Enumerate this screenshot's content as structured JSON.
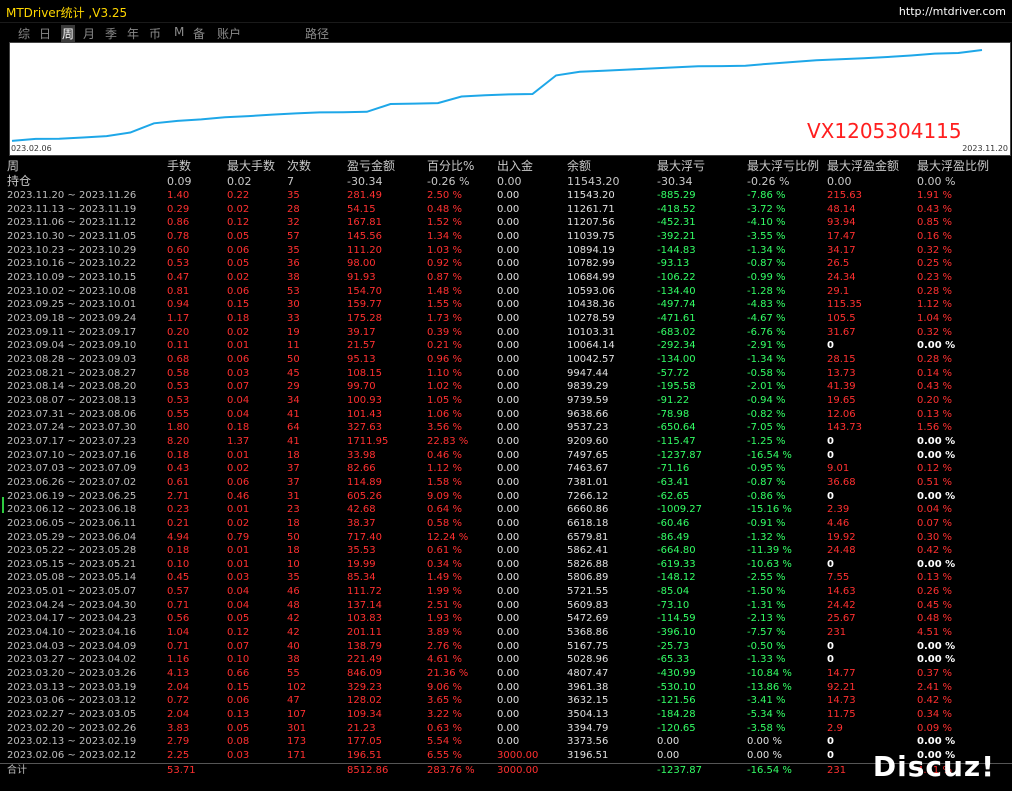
{
  "window": {
    "title": "MTDriver统计 ,V3.25",
    "url": "http://mtdriver.com"
  },
  "tabs": [
    "综",
    "日",
    "周",
    "月",
    "季",
    "年",
    "币",
    "M",
    "备",
    "账户",
    "路径"
  ],
  "active_tab": "周",
  "chart": {
    "start_label": "023.02.06",
    "end_label": "2023.11.20",
    "watermark": "VX1205304115",
    "line_color": "#1ea7e8"
  },
  "chart_data": {
    "type": "line",
    "series": [
      {
        "values": [
          3196.51,
          3373.56,
          3394.79,
          3504.13,
          3632.15,
          3961.38,
          4807.47,
          5028.96,
          5167.75,
          5368.86,
          5472.69,
          5609.83,
          5721.55,
          5806.89,
          5826.88,
          5862.41,
          6579.81,
          6618.18,
          6660.86,
          7266.12,
          7381.01,
          7463.67,
          7497.65,
          9209.6,
          9537.23,
          9638.66,
          9739.59,
          9839.29,
          9947.44,
          10042.57,
          10064.14,
          10103.31,
          10278.59,
          10438.36,
          10593.06,
          10684.99,
          10782.99,
          10894.19,
          11039.75,
          11207.56,
          11261.71,
          11543.2
        ]
      }
    ],
    "x_start": "023.02.06",
    "x_end": "2023.11.20"
  },
  "headers": [
    "周",
    "手数",
    "最大手数",
    "次数",
    "盈亏金额",
    "百分比%",
    "出入金",
    "余额",
    "最大浮亏",
    "最大浮亏比例",
    "最大浮盈金额",
    "最大浮盈比例"
  ],
  "holding": {
    "label": "持仓",
    "lots": "0.09",
    "maxlots": "0.02",
    "count": "7",
    "pnl": "-30.34",
    "pct": "-0.26 %",
    "io": "0.00",
    "balance": "11543.20",
    "maxloss": "-30.34",
    "maxlosspct": "-0.26 %",
    "maxprofit": "0.00",
    "maxprofitpct": "0.00 %"
  },
  "rows": [
    [
      "2023.11.20 ~ 2023.11.26",
      "1.40",
      "0.22",
      "35",
      "281.49",
      "2.50 %",
      "0.00",
      "11543.20",
      "-885.29",
      "-7.86 %",
      "215.63",
      "1.91 %"
    ],
    [
      "2023.11.13 ~ 2023.11.19",
      "0.29",
      "0.02",
      "28",
      "54.15",
      "0.48 %",
      "0.00",
      "11261.71",
      "-418.52",
      "-3.72 %",
      "48.14",
      "0.43 %"
    ],
    [
      "2023.11.06 ~ 2023.11.12",
      "0.86",
      "0.12",
      "32",
      "167.81",
      "1.52 %",
      "0.00",
      "11207.56",
      "-452.31",
      "-4.10 %",
      "93.94",
      "0.85 %"
    ],
    [
      "2023.10.30 ~ 2023.11.05",
      "0.78",
      "0.05",
      "57",
      "145.56",
      "1.34 %",
      "0.00",
      "11039.75",
      "-392.21",
      "-3.55 %",
      "17.47",
      "0.16 %"
    ],
    [
      "2023.10.23 ~ 2023.10.29",
      "0.60",
      "0.06",
      "35",
      "111.20",
      "1.03 %",
      "0.00",
      "10894.19",
      "-144.83",
      "-1.34 %",
      "34.17",
      "0.32 %"
    ],
    [
      "2023.10.16 ~ 2023.10.22",
      "0.53",
      "0.05",
      "36",
      "98.00",
      "0.92 %",
      "0.00",
      "10782.99",
      "-93.13",
      "-0.87 %",
      "26.5",
      "0.25 %"
    ],
    [
      "2023.10.09 ~ 2023.10.15",
      "0.47",
      "0.02",
      "38",
      "91.93",
      "0.87 %",
      "0.00",
      "10684.99",
      "-106.22",
      "-0.99 %",
      "24.34",
      "0.23 %"
    ],
    [
      "2023.10.02 ~ 2023.10.08",
      "0.81",
      "0.06",
      "53",
      "154.70",
      "1.48 %",
      "0.00",
      "10593.06",
      "-134.40",
      "-1.28 %",
      "29.1",
      "0.28 %"
    ],
    [
      "2023.09.25 ~ 2023.10.01",
      "0.94",
      "0.15",
      "30",
      "159.77",
      "1.55 %",
      "0.00",
      "10438.36",
      "-497.74",
      "-4.83 %",
      "115.35",
      "1.12 %"
    ],
    [
      "2023.09.18 ~ 2023.09.24",
      "1.17",
      "0.18",
      "33",
      "175.28",
      "1.73 %",
      "0.00",
      "10278.59",
      "-471.61",
      "-4.67 %",
      "105.5",
      "1.04 %"
    ],
    [
      "2023.09.11 ~ 2023.09.17",
      "0.20",
      "0.02",
      "19",
      "39.17",
      "0.39 %",
      "0.00",
      "10103.31",
      "-683.02",
      "-6.76 %",
      "31.67",
      "0.32 %"
    ],
    [
      "2023.09.04 ~ 2023.09.10",
      "0.11",
      "0.01",
      "11",
      "21.57",
      "0.21 %",
      "0.00",
      "10064.14",
      "-292.34",
      "-2.91 %",
      "0",
      "0.00 %"
    ],
    [
      "2023.08.28 ~ 2023.09.03",
      "0.68",
      "0.06",
      "50",
      "95.13",
      "0.96 %",
      "0.00",
      "10042.57",
      "-134.00",
      "-1.34 %",
      "28.15",
      "0.28 %"
    ],
    [
      "2023.08.21 ~ 2023.08.27",
      "0.58",
      "0.03",
      "45",
      "108.15",
      "1.10 %",
      "0.00",
      "9947.44",
      "-57.72",
      "-0.58 %",
      "13.73",
      "0.14 %"
    ],
    [
      "2023.08.14 ~ 2023.08.20",
      "0.53",
      "0.07",
      "29",
      "99.70",
      "1.02 %",
      "0.00",
      "9839.29",
      "-195.58",
      "-2.01 %",
      "41.39",
      "0.43 %"
    ],
    [
      "2023.08.07 ~ 2023.08.13",
      "0.53",
      "0.04",
      "34",
      "100.93",
      "1.05 %",
      "0.00",
      "9739.59",
      "-91.22",
      "-0.94 %",
      "19.65",
      "0.20 %"
    ],
    [
      "2023.07.31 ~ 2023.08.06",
      "0.55",
      "0.04",
      "41",
      "101.43",
      "1.06 %",
      "0.00",
      "9638.66",
      "-78.98",
      "-0.82 %",
      "12.06",
      "0.13 %"
    ],
    [
      "2023.07.24 ~ 2023.07.30",
      "1.80",
      "0.18",
      "64",
      "327.63",
      "3.56 %",
      "0.00",
      "9537.23",
      "-650.64",
      "-7.05 %",
      "143.73",
      "1.56 %"
    ],
    [
      "2023.07.17 ~ 2023.07.23",
      "8.20",
      "1.37",
      "41",
      "1711.95",
      "22.83 %",
      "0.00",
      "9209.60",
      "-115.47",
      "-1.25 %",
      "0",
      "0.00 %"
    ],
    [
      "2023.07.10 ~ 2023.07.16",
      "0.18",
      "0.01",
      "18",
      "33.98",
      "0.46 %",
      "0.00",
      "7497.65",
      "-1237.87",
      "-16.54 %",
      "0",
      "0.00 %"
    ],
    [
      "2023.07.03 ~ 2023.07.09",
      "0.43",
      "0.02",
      "37",
      "82.66",
      "1.12 %",
      "0.00",
      "7463.67",
      "-71.16",
      "-0.95 %",
      "9.01",
      "0.12 %"
    ],
    [
      "2023.06.26 ~ 2023.07.02",
      "0.61",
      "0.06",
      "37",
      "114.89",
      "1.58 %",
      "0.00",
      "7381.01",
      "-63.41",
      "-0.87 %",
      "36.68",
      "0.51 %"
    ],
    [
      "2023.06.19 ~ 2023.06.25",
      "2.71",
      "0.46",
      "31",
      "605.26",
      "9.09 %",
      "0.00",
      "7266.12",
      "-62.65",
      "-0.86 %",
      "0",
      "0.00 %"
    ],
    [
      "2023.06.12 ~ 2023.06.18",
      "0.23",
      "0.01",
      "23",
      "42.68",
      "0.64 %",
      "0.00",
      "6660.86",
      "-1009.27",
      "-15.16 %",
      "2.39",
      "0.04 %"
    ],
    [
      "2023.06.05 ~ 2023.06.11",
      "0.21",
      "0.02",
      "18",
      "38.37",
      "0.58 %",
      "0.00",
      "6618.18",
      "-60.46",
      "-0.91 %",
      "4.46",
      "0.07 %"
    ],
    [
      "2023.05.29 ~ 2023.06.04",
      "4.94",
      "0.79",
      "50",
      "717.40",
      "12.24 %",
      "0.00",
      "6579.81",
      "-86.49",
      "-1.32 %",
      "19.92",
      "0.30 %"
    ],
    [
      "2023.05.22 ~ 2023.05.28",
      "0.18",
      "0.01",
      "18",
      "35.53",
      "0.61 %",
      "0.00",
      "5862.41",
      "-664.80",
      "-11.39 %",
      "24.48",
      "0.42 %"
    ],
    [
      "2023.05.15 ~ 2023.05.21",
      "0.10",
      "0.01",
      "10",
      "19.99",
      "0.34 %",
      "0.00",
      "5826.88",
      "-619.33",
      "-10.63 %",
      "0",
      "0.00 %"
    ],
    [
      "2023.05.08 ~ 2023.05.14",
      "0.45",
      "0.03",
      "35",
      "85.34",
      "1.49 %",
      "0.00",
      "5806.89",
      "-148.12",
      "-2.55 %",
      "7.55",
      "0.13 %"
    ],
    [
      "2023.05.01 ~ 2023.05.07",
      "0.57",
      "0.04",
      "46",
      "111.72",
      "1.99 %",
      "0.00",
      "5721.55",
      "-85.04",
      "-1.50 %",
      "14.63",
      "0.26 %"
    ],
    [
      "2023.04.24 ~ 2023.04.30",
      "0.71",
      "0.04",
      "48",
      "137.14",
      "2.51 %",
      "0.00",
      "5609.83",
      "-73.10",
      "-1.31 %",
      "24.42",
      "0.45 %"
    ],
    [
      "2023.04.17 ~ 2023.04.23",
      "0.56",
      "0.05",
      "42",
      "103.83",
      "1.93 %",
      "0.00",
      "5472.69",
      "-114.59",
      "-2.13 %",
      "25.67",
      "0.48 %"
    ],
    [
      "2023.04.10 ~ 2023.04.16",
      "1.04",
      "0.12",
      "42",
      "201.11",
      "3.89 %",
      "0.00",
      "5368.86",
      "-396.10",
      "-7.57 %",
      "231",
      "4.51 %"
    ],
    [
      "2023.04.03 ~ 2023.04.09",
      "0.71",
      "0.07",
      "40",
      "138.79",
      "2.76 %",
      "0.00",
      "5167.75",
      "-25.73",
      "-0.50 %",
      "0",
      "0.00 %"
    ],
    [
      "2023.03.27 ~ 2023.04.02",
      "1.16",
      "0.10",
      "38",
      "221.49",
      "4.61 %",
      "0.00",
      "5028.96",
      "-65.33",
      "-1.33 %",
      "0",
      "0.00 %"
    ],
    [
      "2023.03.20 ~ 2023.03.26",
      "4.13",
      "0.66",
      "55",
      "846.09",
      "21.36 %",
      "0.00",
      "4807.47",
      "-430.99",
      "-10.84 %",
      "14.77",
      "0.37 %"
    ],
    [
      "2023.03.13 ~ 2023.03.19",
      "2.04",
      "0.15",
      "102",
      "329.23",
      "9.06 %",
      "0.00",
      "3961.38",
      "-530.10",
      "-13.86 %",
      "92.21",
      "2.41 %"
    ],
    [
      "2023.03.06 ~ 2023.03.12",
      "0.72",
      "0.06",
      "47",
      "128.02",
      "3.65 %",
      "0.00",
      "3632.15",
      "-121.56",
      "-3.41 %",
      "14.73",
      "0.42 %"
    ],
    [
      "2023.02.27 ~ 2023.03.05",
      "2.04",
      "0.13",
      "107",
      "109.34",
      "3.22 %",
      "0.00",
      "3504.13",
      "-184.28",
      "-5.34 %",
      "11.75",
      "0.34 %"
    ],
    [
      "2023.02.20 ~ 2023.02.26",
      "3.83",
      "0.05",
      "301",
      "21.23",
      "0.63 %",
      "0.00",
      "3394.79",
      "-120.65",
      "-3.58 %",
      "2.9",
      "0.09 %"
    ],
    [
      "2023.02.13 ~ 2023.02.19",
      "2.79",
      "0.08",
      "173",
      "177.05",
      "5.54 %",
      "0.00",
      "3373.56",
      "0.00",
      "0.00 %",
      "0",
      "0.00 %"
    ],
    [
      "2023.02.06 ~ 2023.02.12",
      "2.25",
      "0.03",
      "171",
      "196.51",
      "6.55 %",
      "3000.00",
      "3196.51",
      "0.00",
      "0.00 %",
      "0",
      "0.00 %"
    ]
  ],
  "total": {
    "label": "合计",
    "lots": "53.71",
    "pnl": "8512.86",
    "pct": "283.76 %",
    "io": "3000.00",
    "maxloss": "-1237.87",
    "maxlosspct": "-16.54 %",
    "maxprofit": "231",
    "maxprofitpct": "4.51 %"
  },
  "forum_mark": "Discuz!"
}
